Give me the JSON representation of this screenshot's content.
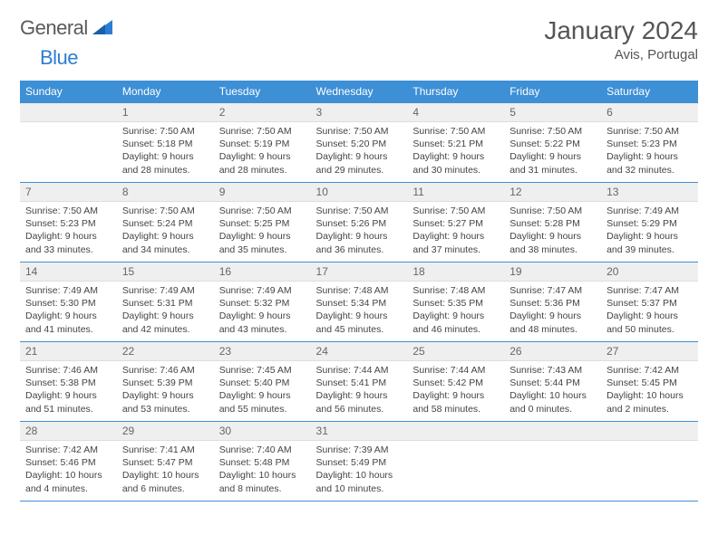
{
  "brand": {
    "word1": "General",
    "word2": "Blue"
  },
  "colors": {
    "header_bg": "#3d8fd6",
    "header_text": "#ffffff",
    "daynum_bg": "#efefef",
    "rule": "#3d8fd6",
    "text": "#444444",
    "title": "#555555",
    "brand_gray": "#5a5a5a",
    "brand_blue": "#2d7dd2"
  },
  "title": "January 2024",
  "location": "Avis, Portugal",
  "day_names": [
    "Sunday",
    "Monday",
    "Tuesday",
    "Wednesday",
    "Thursday",
    "Friday",
    "Saturday"
  ],
  "weeks": [
    [
      {
        "day": "",
        "lines": []
      },
      {
        "day": "1",
        "lines": [
          "Sunrise: 7:50 AM",
          "Sunset: 5:18 PM",
          "Daylight: 9 hours and 28 minutes."
        ]
      },
      {
        "day": "2",
        "lines": [
          "Sunrise: 7:50 AM",
          "Sunset: 5:19 PM",
          "Daylight: 9 hours and 28 minutes."
        ]
      },
      {
        "day": "3",
        "lines": [
          "Sunrise: 7:50 AM",
          "Sunset: 5:20 PM",
          "Daylight: 9 hours and 29 minutes."
        ]
      },
      {
        "day": "4",
        "lines": [
          "Sunrise: 7:50 AM",
          "Sunset: 5:21 PM",
          "Daylight: 9 hours and 30 minutes."
        ]
      },
      {
        "day": "5",
        "lines": [
          "Sunrise: 7:50 AM",
          "Sunset: 5:22 PM",
          "Daylight: 9 hours and 31 minutes."
        ]
      },
      {
        "day": "6",
        "lines": [
          "Sunrise: 7:50 AM",
          "Sunset: 5:23 PM",
          "Daylight: 9 hours and 32 minutes."
        ]
      }
    ],
    [
      {
        "day": "7",
        "lines": [
          "Sunrise: 7:50 AM",
          "Sunset: 5:23 PM",
          "Daylight: 9 hours and 33 minutes."
        ]
      },
      {
        "day": "8",
        "lines": [
          "Sunrise: 7:50 AM",
          "Sunset: 5:24 PM",
          "Daylight: 9 hours and 34 minutes."
        ]
      },
      {
        "day": "9",
        "lines": [
          "Sunrise: 7:50 AM",
          "Sunset: 5:25 PM",
          "Daylight: 9 hours and 35 minutes."
        ]
      },
      {
        "day": "10",
        "lines": [
          "Sunrise: 7:50 AM",
          "Sunset: 5:26 PM",
          "Daylight: 9 hours and 36 minutes."
        ]
      },
      {
        "day": "11",
        "lines": [
          "Sunrise: 7:50 AM",
          "Sunset: 5:27 PM",
          "Daylight: 9 hours and 37 minutes."
        ]
      },
      {
        "day": "12",
        "lines": [
          "Sunrise: 7:50 AM",
          "Sunset: 5:28 PM",
          "Daylight: 9 hours and 38 minutes."
        ]
      },
      {
        "day": "13",
        "lines": [
          "Sunrise: 7:49 AM",
          "Sunset: 5:29 PM",
          "Daylight: 9 hours and 39 minutes."
        ]
      }
    ],
    [
      {
        "day": "14",
        "lines": [
          "Sunrise: 7:49 AM",
          "Sunset: 5:30 PM",
          "Daylight: 9 hours and 41 minutes."
        ]
      },
      {
        "day": "15",
        "lines": [
          "Sunrise: 7:49 AM",
          "Sunset: 5:31 PM",
          "Daylight: 9 hours and 42 minutes."
        ]
      },
      {
        "day": "16",
        "lines": [
          "Sunrise: 7:49 AM",
          "Sunset: 5:32 PM",
          "Daylight: 9 hours and 43 minutes."
        ]
      },
      {
        "day": "17",
        "lines": [
          "Sunrise: 7:48 AM",
          "Sunset: 5:34 PM",
          "Daylight: 9 hours and 45 minutes."
        ]
      },
      {
        "day": "18",
        "lines": [
          "Sunrise: 7:48 AM",
          "Sunset: 5:35 PM",
          "Daylight: 9 hours and 46 minutes."
        ]
      },
      {
        "day": "19",
        "lines": [
          "Sunrise: 7:47 AM",
          "Sunset: 5:36 PM",
          "Daylight: 9 hours and 48 minutes."
        ]
      },
      {
        "day": "20",
        "lines": [
          "Sunrise: 7:47 AM",
          "Sunset: 5:37 PM",
          "Daylight: 9 hours and 50 minutes."
        ]
      }
    ],
    [
      {
        "day": "21",
        "lines": [
          "Sunrise: 7:46 AM",
          "Sunset: 5:38 PM",
          "Daylight: 9 hours and 51 minutes."
        ]
      },
      {
        "day": "22",
        "lines": [
          "Sunrise: 7:46 AM",
          "Sunset: 5:39 PM",
          "Daylight: 9 hours and 53 minutes."
        ]
      },
      {
        "day": "23",
        "lines": [
          "Sunrise: 7:45 AM",
          "Sunset: 5:40 PM",
          "Daylight: 9 hours and 55 minutes."
        ]
      },
      {
        "day": "24",
        "lines": [
          "Sunrise: 7:44 AM",
          "Sunset: 5:41 PM",
          "Daylight: 9 hours and 56 minutes."
        ]
      },
      {
        "day": "25",
        "lines": [
          "Sunrise: 7:44 AM",
          "Sunset: 5:42 PM",
          "Daylight: 9 hours and 58 minutes."
        ]
      },
      {
        "day": "26",
        "lines": [
          "Sunrise: 7:43 AM",
          "Sunset: 5:44 PM",
          "Daylight: 10 hours and 0 minutes."
        ]
      },
      {
        "day": "27",
        "lines": [
          "Sunrise: 7:42 AM",
          "Sunset: 5:45 PM",
          "Daylight: 10 hours and 2 minutes."
        ]
      }
    ],
    [
      {
        "day": "28",
        "lines": [
          "Sunrise: 7:42 AM",
          "Sunset: 5:46 PM",
          "Daylight: 10 hours and 4 minutes."
        ]
      },
      {
        "day": "29",
        "lines": [
          "Sunrise: 7:41 AM",
          "Sunset: 5:47 PM",
          "Daylight: 10 hours and 6 minutes."
        ]
      },
      {
        "day": "30",
        "lines": [
          "Sunrise: 7:40 AM",
          "Sunset: 5:48 PM",
          "Daylight: 10 hours and 8 minutes."
        ]
      },
      {
        "day": "31",
        "lines": [
          "Sunrise: 7:39 AM",
          "Sunset: 5:49 PM",
          "Daylight: 10 hours and 10 minutes."
        ]
      },
      {
        "day": "",
        "lines": []
      },
      {
        "day": "",
        "lines": []
      },
      {
        "day": "",
        "lines": []
      }
    ]
  ]
}
